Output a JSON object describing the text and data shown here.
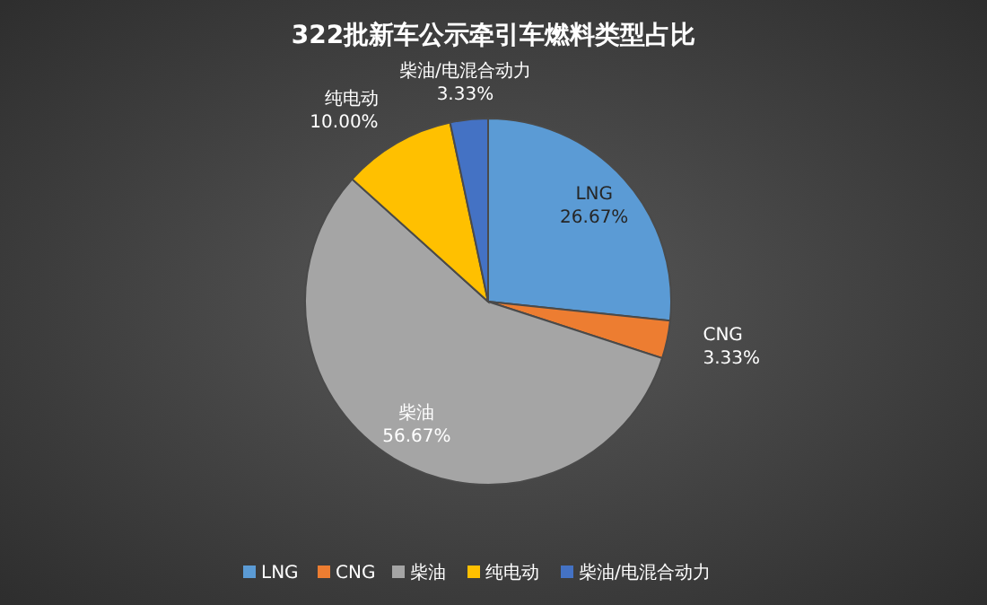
{
  "chart_data": {
    "type": "pie",
    "title": "322批新车公示牵引车燃料类型占比",
    "categories": [
      "LNG",
      "CNG",
      "柴油",
      "纯电动",
      "柴油/电混合动力"
    ],
    "values": [
      26.67,
      3.33,
      56.67,
      10.0,
      3.33
    ],
    "value_labels": [
      "26.67%",
      "3.33%",
      "56.67%",
      "10.00%",
      "3.33%"
    ],
    "colors": [
      "#5b9bd5",
      "#ed7d31",
      "#a5a5a5",
      "#ffc000",
      "#4472c4"
    ],
    "legend": "bottom"
  }
}
